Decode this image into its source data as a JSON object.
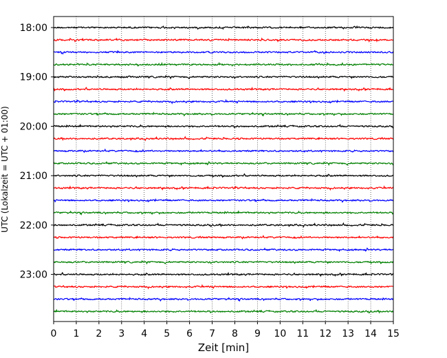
{
  "chart_data": {
    "type": "line",
    "title": "",
    "xlabel": "Zeit  [min]",
    "ylabel": "UTC (Lokalzeit = UTC + 01:00)",
    "xlim": [
      0,
      15
    ],
    "x_ticks": [
      "0",
      "1",
      "2",
      "3",
      "4",
      "5",
      "6",
      "7",
      "8",
      "9",
      "10",
      "11",
      "12",
      "13",
      "14",
      "15"
    ],
    "y_ticks": [
      "18:00",
      "19:00",
      "20:00",
      "21:00",
      "22:00",
      "23:00"
    ],
    "grid": "vertical dotted lines at each minute",
    "legend": "none",
    "trace_colors": [
      "#000000",
      "#ff0000",
      "#0000ff",
      "#008000"
    ],
    "trace_count": 24,
    "trace_interval_minutes": 15,
    "start_time": "18:00",
    "end_time": "23:45",
    "series_note": "24 seismogram traces, one per 15-minute window, colors cycle black, red, blue, green"
  }
}
